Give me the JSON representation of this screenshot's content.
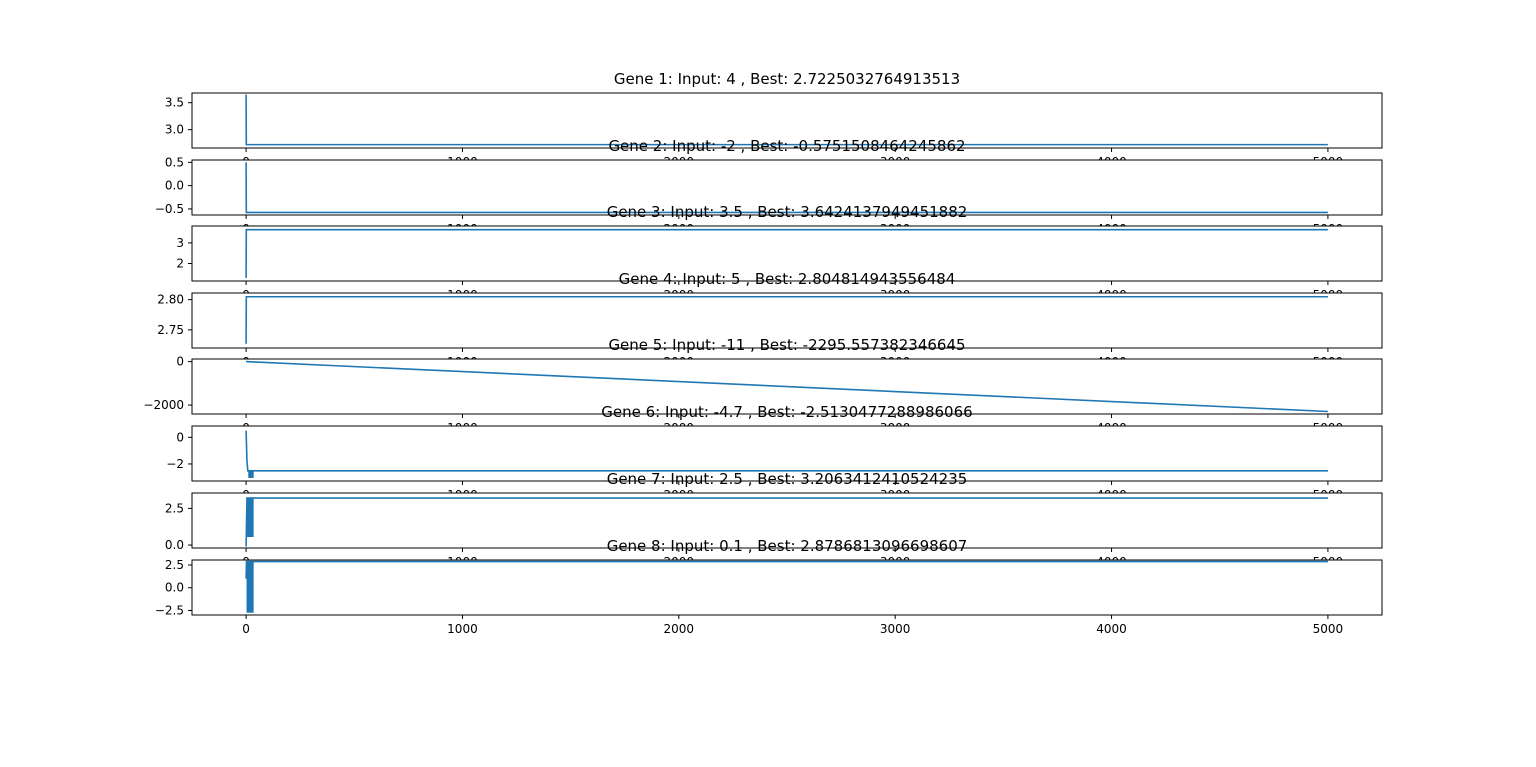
{
  "series_color": "#1f77b4",
  "chart_data": [
    {
      "type": "line",
      "title": "Gene 1: Input: 4 , Best: 2.7225032764913513",
      "xlim": [
        -250,
        5250
      ],
      "ylim": [
        2.66,
        3.68
      ],
      "yticks": [
        3.0,
        3.5
      ],
      "ytick_labels": [
        "3.0",
        "3.5"
      ],
      "xticks": [
        0,
        1000,
        2000,
        3000,
        4000,
        5000
      ],
      "xtick_labels": [
        "0",
        "1000",
        "2000",
        "3000",
        "4000",
        "5000"
      ],
      "x": [
        0,
        1,
        5000
      ],
      "y": [
        3.65,
        2.7225,
        2.7225
      ],
      "burst": null
    },
    {
      "type": "line",
      "title": "Gene 2: Input: -2 , Best: -0.5751508464245862",
      "xlim": [
        -250,
        5250
      ],
      "ylim": [
        -0.63,
        0.55
      ],
      "yticks": [
        -0.5,
        0.0,
        0.5
      ],
      "ytick_labels": [
        "−0.5",
        "0.0",
        "0.5"
      ],
      "xticks": [
        0,
        1000,
        2000,
        3000,
        4000,
        5000
      ],
      "xtick_labels": [
        "0",
        "1000",
        "2000",
        "3000",
        "4000",
        "5000"
      ],
      "x": [
        0,
        1,
        5000
      ],
      "y": [
        0.5,
        -0.5752,
        -0.5752
      ],
      "burst": null
    },
    {
      "type": "line",
      "title": "Gene 3: Input: 3.5 , Best: 3.6424137949451882",
      "xlim": [
        -250,
        5250
      ],
      "ylim": [
        1.15,
        3.82
      ],
      "yticks": [
        2,
        3
      ],
      "ytick_labels": [
        "2",
        "3"
      ],
      "xticks": [
        0,
        1000,
        2000,
        3000,
        4000,
        5000
      ],
      "xtick_labels": [
        "0",
        "1000",
        "2000",
        "3000",
        "4000",
        "5000"
      ],
      "x": [
        0,
        1,
        5000
      ],
      "y": [
        1.3,
        3.6424,
        3.6424
      ],
      "burst": null
    },
    {
      "type": "line",
      "title": "Gene 4: Input: 5 , Best: 2.804814943556484",
      "xlim": [
        -250,
        5250
      ],
      "ylim": [
        2.72,
        2.811
      ],
      "yticks": [
        2.75,
        2.8
      ],
      "ytick_labels": [
        "2.75",
        "2.80"
      ],
      "xticks": [
        0,
        1000,
        2000,
        3000,
        4000,
        5000
      ],
      "xtick_labels": [
        "0",
        "1000",
        "2000",
        "3000",
        "4000",
        "5000"
      ],
      "x": [
        0,
        1,
        5000
      ],
      "y": [
        2.727,
        2.8048,
        2.8048
      ],
      "burst": null
    },
    {
      "type": "line",
      "title": "Gene 5: Input: -11 , Best: -2295.557382346645",
      "xlim": [
        -250,
        5250
      ],
      "ylim": [
        -2410,
        120
      ],
      "yticks": [
        -2000,
        0
      ],
      "ytick_labels": [
        "−2000",
        "0"
      ],
      "xticks": [
        0,
        1000,
        2000,
        3000,
        4000,
        5000
      ],
      "xtick_labels": [
        "0",
        "1000",
        "2000",
        "3000",
        "4000",
        "5000"
      ],
      "x": [
        0,
        5000
      ],
      "y": [
        0,
        -2295.56
      ],
      "burst": null
    },
    {
      "type": "line",
      "title": "Gene 6: Input: -4.7 , Best: -2.5130477288986066",
      "xlim": [
        -250,
        5250
      ],
      "ylim": [
        -3.28,
        0.85
      ],
      "yticks": [
        -2,
        0
      ],
      "ytick_labels": [
        "−2",
        "0"
      ],
      "xticks": [
        0,
        1000,
        2000,
        3000,
        4000,
        5000
      ],
      "xtick_labels": [
        "0",
        "1000",
        "2000",
        "3000",
        "4000",
        "5000"
      ],
      "x": [
        0,
        4,
        8,
        5000
      ],
      "y": [
        0.5,
        -1.8,
        -2.513,
        -2.513
      ],
      "burst": {
        "x0": 10,
        "x1": 35,
        "ymin": -3.05,
        "ymax": -2.5
      }
    },
    {
      "type": "line",
      "title": "Gene 7: Input: 2.5 , Best: 3.2063412410524235",
      "xlim": [
        -250,
        5250
      ],
      "ylim": [
        -0.2,
        3.55
      ],
      "yticks": [
        0.0,
        2.5
      ],
      "ytick_labels": [
        "0.0",
        "2.5"
      ],
      "xticks": [
        0,
        1000,
        2000,
        3000,
        4000,
        5000
      ],
      "xtick_labels": [
        "0",
        "1000",
        "2000",
        "3000",
        "4000",
        "5000"
      ],
      "x": [
        0,
        4,
        5000
      ],
      "y": [
        -0.1,
        3.2063,
        3.2063
      ],
      "burst": {
        "x0": 4,
        "x1": 35,
        "ymin": 0.55,
        "ymax": 3.25
      }
    },
    {
      "type": "line",
      "title": "Gene 8: Input: 0.1 , Best: 2.8786813096698607",
      "xlim": [
        -250,
        5250
      ],
      "ylim": [
        -3.0,
        3.05
      ],
      "yticks": [
        -2.5,
        0.0,
        2.5
      ],
      "ytick_labels": [
        "−2.5",
        "0.0",
        "2.5"
      ],
      "xticks": [
        0,
        1000,
        2000,
        3000,
        4000,
        5000
      ],
      "xtick_labels": [
        "0",
        "1000",
        "2000",
        "3000",
        "4000",
        "5000"
      ],
      "x": [
        0,
        2,
        5000
      ],
      "y": [
        1.0,
        2.8787,
        2.8787
      ],
      "burst": {
        "x0": 2,
        "x1": 35,
        "ymin": -2.75,
        "ymax": 2.9
      }
    }
  ]
}
